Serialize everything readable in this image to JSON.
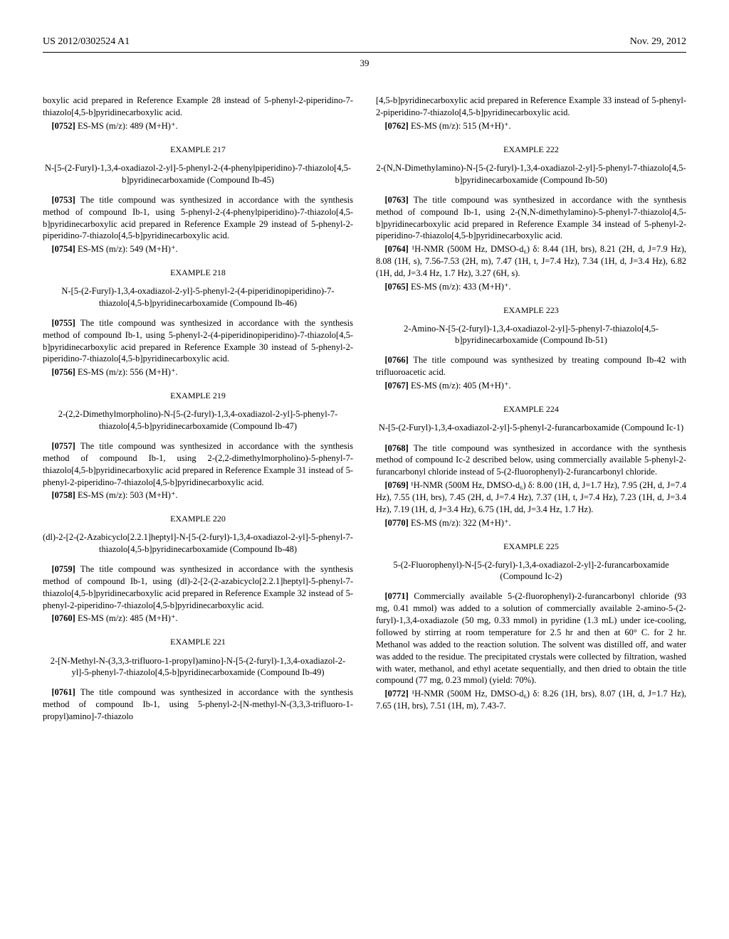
{
  "header": {
    "left": "US 2012/0302524 A1",
    "right": "Nov. 29, 2012"
  },
  "page_number": "39",
  "left_col": {
    "p0752_pre": "boxylic acid prepared in Reference Example 28 instead of 5-phenyl-2-piperidino-7-thiazolo[4,5-b]pyridinecarboxylic acid.",
    "p0752_num": "[0752]",
    "p0752": "    ES-MS (m/z): 489 (M+H)⁺.",
    "ex217": "EXAMPLE 217",
    "ex217_title": "N-[5-(2-Furyl)-1,3,4-oxadiazol-2-yl]-5-phenyl-2-(4-phenylpiperidino)-7-thiazolo[4,5-b]pyridinecarboxamide (Compound Ib-45)",
    "p0753_num": "[0753]",
    "p0753": "    The title compound was synthesized in accordance with the synthesis method of compound Ib-1, using 5-phenyl-2-(4-phenylpiperidino)-7-thiazolo[4,5-b]pyridinecarboxylic acid prepared in Reference Example 29 instead of 5-phenyl-2-piperidino-7-thiazolo[4,5-b]pyridinecarboxylic acid.",
    "p0754_num": "[0754]",
    "p0754": "    ES-MS (m/z): 549 (M+H)⁺.",
    "ex218": "EXAMPLE 218",
    "ex218_title": "N-[5-(2-Furyl)-1,3,4-oxadiazol-2-yl]-5-phenyl-2-(4-piperidinopiperidino)-7-thiazolo[4,5-b]pyridinecarboxamide (Compound Ib-46)",
    "p0755_num": "[0755]",
    "p0755": "    The title compound was synthesized in accordance with the synthesis method of compound Ib-1, using 5-phenyl-2-(4-piperidinopiperidino)-7-thiazolo[4,5-b]pyridinecarboxylic acid prepared in Reference Example 30 instead of 5-phenyl-2-piperidino-7-thiazolo[4,5-b]pyridinecarboxylic acid.",
    "p0756_num": "[0756]",
    "p0756": "    ES-MS (m/z): 556 (M+H)⁺.",
    "ex219": "EXAMPLE 219",
    "ex219_title": "2-(2,2-Dimethylmorpholino)-N-[5-(2-furyl)-1,3,4-oxadiazol-2-yl]-5-phenyl-7-thiazolo[4,5-b]pyridinecarboxamide (Compound Ib-47)",
    "p0757_num": "[0757]",
    "p0757": "    The title compound was synthesized in accordance with the synthesis method of compound Ib-1, using 2-(2,2-dimethylmorpholino)-5-phenyl-7-thiazolo[4,5-b]pyridinecarboxylic acid prepared in Reference Example 31 instead of 5-phenyl-2-piperidino-7-thiazolo[4,5-b]pyridinecarboxylic acid.",
    "p0758_num": "[0758]",
    "p0758": "    ES-MS (m/z): 503 (M+H)⁺.",
    "ex220": "EXAMPLE 220",
    "ex220_title": "(dl)-2-[2-(2-Azabicyclo[2.2.1]heptyl]-N-[5-(2-furyl)-1,3,4-oxadiazol-2-yl]-5-phenyl-7-thiazolo[4,5-b]pyridinecarboxamide (Compound Ib-48)",
    "p0759_num": "[0759]",
    "p0759": "    The title compound was synthesized in accordance with the synthesis method of compound Ib-1, using (dl)-2-[2-(2-azabicyclo[2.2.1]heptyl]-5-phenyl-7-thiazolo[4,5-b]pyridinecarboxylic acid prepared in Reference Example 32 instead of 5-phenyl-2-piperidino-7-thiazolo[4,5-b]pyridinecarboxylic acid.",
    "p0760_num": "[0760]",
    "p0760": "    ES-MS (m/z): 485 (M+H)⁺.",
    "ex221": "EXAMPLE 221",
    "ex221_title": "2-[N-Methyl-N-(3,3,3-trifluoro-1-propyl)amino]-N-[5-(2-furyl)-1,3,4-oxadiazol-2-yl]-5-phenyl-7-thiazolo[4,5-b]pyridinecarboxamide (Compound Ib-49)",
    "p0761_num": "[0761]",
    "p0761": "    The title compound was synthesized in accordance with the synthesis method of compound Ib-1, using 5-phenyl-2-[N-methyl-N-(3,3,3-trifluoro-1-propyl)amino]-7-thiazolo"
  },
  "right_col": {
    "p_pre": "[4,5-b]pyridinecarboxylic acid prepared in Reference Example 33 instead of 5-phenyl-2-piperidino-7-thiazolo[4,5-b]pyridinecarboxylic acid.",
    "p0762_num": "[0762]",
    "p0762": "    ES-MS (m/z): 515 (M+H)⁺.",
    "ex222": "EXAMPLE 222",
    "ex222_title": "2-(N,N-Dimethylamino)-N-[5-(2-furyl)-1,3,4-oxadiazol-2-yl]-5-phenyl-7-thiazolo[4,5-b]pyridinecarboxamide (Compound Ib-50)",
    "p0763_num": "[0763]",
    "p0763": "    The title compound was synthesized in accordance with the synthesis method of compound Ib-1, using 2-(N,N-dimethylamino)-5-phenyl-7-thiazolo[4,5-b]pyridinecarboxylic acid prepared in Reference Example 34 instead of 5-phenyl-2-piperidino-7-thiazolo[4,5-b]pyridinecarboxylic acid.",
    "p0764_num": "[0764]",
    "p0764": "    ¹H-NMR (500M Hz, DMSO-d₆) δ: 8.44 (1H, brs), 8.21 (2H, d, J=7.9 Hz), 8.08 (1H, s), 7.56-7.53 (2H, m), 7.47 (1H, t, J=7.4 Hz), 7.34 (1H, d, J=3.4 Hz), 6.82 (1H, dd, J=3.4 Hz, 1.7 Hz), 3.27 (6H, s).",
    "p0765_num": "[0765]",
    "p0765": "    ES-MS (m/z): 433 (M+H)⁺.",
    "ex223": "EXAMPLE 223",
    "ex223_title": "2-Amino-N-[5-(2-furyl)-1,3,4-oxadiazol-2-yl]-5-phenyl-7-thiazolo[4,5-b]pyridinecarboxamide (Compound Ib-51)",
    "p0766_num": "[0766]",
    "p0766": "    The title compound was synthesized by treating compound Ib-42 with trifluoroacetic acid.",
    "p0767_num": "[0767]",
    "p0767": "    ES-MS (m/z): 405 (M+H)⁺.",
    "ex224": "EXAMPLE 224",
    "ex224_title": "N-[5-(2-Furyl)-1,3,4-oxadiazol-2-yl]-5-phenyl-2-furancarboxamide (Compound Ic-1)",
    "p0768_num": "[0768]",
    "p0768": "    The title compound was synthesized in accordance with the synthesis method of compound Ic-2 described below, using commercially available 5-phenyl-2-furancarbonyl chloride instead of 5-(2-fluorophenyl)-2-furancarbonyl chloride.",
    "p0769_num": "[0769]",
    "p0769": "    ¹H-NMR (500M Hz, DMSO-d₆) δ: 8.00 (1H, d, J=1.7 Hz), 7.95 (2H, d, J=7.4 Hz), 7.55 (1H, brs), 7.45 (2H, d, J=7.4 Hz), 7.37 (1H, t, J=7.4 Hz), 7.23 (1H, d, J=3.4 Hz), 7.19 (1H, d, J=3.4 Hz), 6.75 (1H, dd, J=3.4 Hz, 1.7 Hz).",
    "p0770_num": "[0770]",
    "p0770": "    ES-MS (m/z): 322 (M+H)⁺.",
    "ex225": "EXAMPLE 225",
    "ex225_title": "5-(2-Fluorophenyl)-N-[5-(2-furyl)-1,3,4-oxadiazol-2-yl]-2-furancarboxamide (Compound Ic-2)",
    "p0771_num": "[0771]",
    "p0771": "    Commercially available 5-(2-fluorophenyl)-2-furancarbonyl chloride (93 mg, 0.41 mmol) was added to a solution of commercially available 2-amino-5-(2-furyl)-1,3,4-oxadiazole (50 mg, 0.33 mmol) in pyridine (1.3 mL) under ice-cooling, followed by stirring at room temperature for 2.5 hr and then at 60° C. for 2 hr. Methanol was added to the reaction solution. The solvent was distilled off, and water was added to the residue. The precipitated crystals were collected by filtration, washed with water, methanol, and ethyl acetate sequentially, and then dried to obtain the title compound (77 mg, 0.23 mmol) (yield: 70%).",
    "p0772_num": "[0772]",
    "p0772": "    ¹H-NMR (500M Hz, DMSO-d₆) δ: 8.26 (1H, brs), 8.07 (1H, d, J=1.7 Hz), 7.65 (1H, brs), 7.51 (1H, m), 7.43-7."
  }
}
